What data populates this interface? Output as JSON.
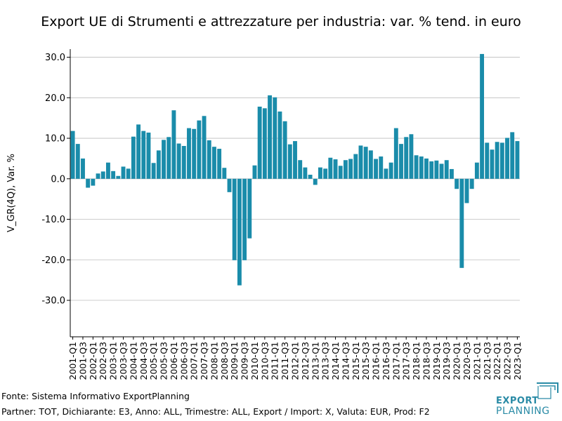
{
  "chart_data": {
    "type": "bar",
    "title": "Export UE di Strumenti e attrezzature per industria: var. % tend. in euro",
    "ylabel": "V_GR(4Q), Var. %",
    "xlabel": "",
    "ylim": [
      -39,
      32
    ],
    "yticks": [
      30,
      20,
      10,
      0,
      -10,
      -20,
      -30
    ],
    "ytick_labels": [
      "30.0",
      "20.0",
      "10.0",
      "0.0",
      "-10.0",
      "-20.0",
      "-30.0"
    ],
    "bar_color": "#1a8caa",
    "categories": [
      "2001-Q1",
      "2001-Q2",
      "2001-Q3",
      "2001-Q4",
      "2002-Q1",
      "2002-Q2",
      "2002-Q3",
      "2002-Q4",
      "2003-Q1",
      "2003-Q2",
      "2003-Q3",
      "2003-Q4",
      "2004-Q1",
      "2004-Q2",
      "2004-Q3",
      "2004-Q4",
      "2005-Q1",
      "2005-Q2",
      "2005-Q3",
      "2005-Q4",
      "2006-Q1",
      "2006-Q2",
      "2006-Q3",
      "2006-Q4",
      "2007-Q1",
      "2007-Q2",
      "2007-Q3",
      "2007-Q4",
      "2008-Q1",
      "2008-Q2",
      "2008-Q3",
      "2008-Q4",
      "2009-Q1",
      "2009-Q2",
      "2009-Q3",
      "2009-Q4",
      "2010-Q1",
      "2010-Q2",
      "2010-Q3",
      "2010-Q4",
      "2011-Q1",
      "2011-Q2",
      "2011-Q3",
      "2011-Q4",
      "2012-Q1",
      "2012-Q2",
      "2012-Q3",
      "2012-Q4",
      "2013-Q1",
      "2013-Q2",
      "2013-Q3",
      "2013-Q4",
      "2014-Q1",
      "2014-Q2",
      "2014-Q3",
      "2014-Q4",
      "2015-Q1",
      "2015-Q2",
      "2015-Q3",
      "2015-Q4",
      "2016-Q1",
      "2016-Q2",
      "2016-Q3",
      "2016-Q4",
      "2017-Q1",
      "2017-Q2",
      "2017-Q3",
      "2017-Q4",
      "2018-Q1",
      "2018-Q2",
      "2018-Q3",
      "2018-Q4",
      "2019-Q1",
      "2019-Q2",
      "2019-Q3",
      "2019-Q4",
      "2020-Q1",
      "2020-Q2",
      "2020-Q3",
      "2020-Q4",
      "2021-Q1",
      "2021-Q2",
      "2021-Q3",
      "2021-Q4",
      "2022-Q1",
      "2022-Q2",
      "2022-Q3",
      "2022-Q4",
      "2023-Q1"
    ],
    "values": [
      11.8,
      8.6,
      5.0,
      -2.2,
      -1.7,
      1.3,
      1.8,
      4.0,
      1.9,
      0.7,
      3.0,
      2.5,
      10.4,
      13.4,
      11.8,
      11.4,
      3.9,
      7.0,
      9.6,
      10.3,
      16.9,
      8.7,
      8.1,
      12.5,
      12.3,
      14.4,
      15.5,
      9.5,
      7.9,
      7.4,
      2.7,
      -3.3,
      -20.1,
      -26.3,
      -20.1,
      -14.7,
      3.3,
      17.8,
      17.4,
      20.6,
      20.1,
      16.6,
      14.2,
      8.5,
      9.3,
      4.6,
      2.8,
      1.0,
      -1.5,
      2.8,
      2.5,
      5.2,
      4.8,
      3.2,
      4.6,
      4.9,
      6.1,
      8.2,
      7.9,
      7.0,
      4.9,
      5.5,
      2.5,
      4.0,
      12.5,
      8.6,
      10.3,
      11.0,
      5.8,
      5.5,
      5.0,
      4.3,
      4.5,
      3.7,
      4.6,
      2.4,
      -2.5,
      -22.0,
      -6.0,
      -2.5,
      4.0,
      30.8,
      8.9,
      7.2,
      9.1,
      8.9,
      10.1,
      11.5,
      9.3
    ],
    "xtick_labels": [
      "2001-Q1",
      "2001-Q3",
      "2002-Q1",
      "2002-Q3",
      "2003-Q1",
      "2003-Q3",
      "2004-Q1",
      "2004-Q3",
      "2005-Q1",
      "2005-Q3",
      "2006-Q1",
      "2006-Q3",
      "2007-Q1",
      "2007-Q3",
      "2008-Q1",
      "2008-Q3",
      "2009-Q1",
      "2009-Q3",
      "2010-Q1",
      "2010-Q3",
      "2011-Q1",
      "2011-Q3",
      "2012-Q1",
      "2012-Q3",
      "2013-Q1",
      "2013-Q3",
      "2014-Q1",
      "2014-Q3",
      "2015-Q1",
      "2015-Q3",
      "2016-Q1",
      "2016-Q3",
      "2017-Q1",
      "2017-Q3",
      "2018-Q1",
      "2018-Q3",
      "2019-Q1",
      "2019-Q3",
      "2020-Q1",
      "2020-Q3",
      "2021-Q1",
      "2021-Q3",
      "2022-Q1",
      "2022-Q3",
      "2023-Q1"
    ],
    "grid": "horizontal",
    "legend": "none"
  },
  "footer": {
    "source": "Fonte: Sistema Informativo ExportPlanning",
    "partner": "Partner: TOT, Dichiarante: E3, Anno: ALL, Trimestre: ALL, Export / Import: X, Valuta: EUR, Prod: F2"
  },
  "logo": {
    "line1": "EXPORT",
    "line2": "PLANNING",
    "color": "#2a8ba6"
  }
}
